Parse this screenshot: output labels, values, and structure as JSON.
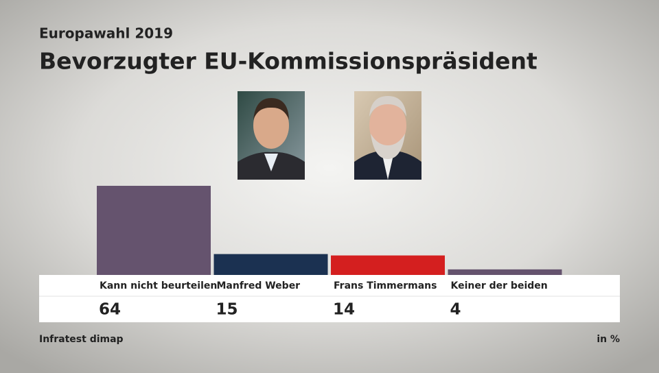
{
  "chart_data": {
    "type": "bar",
    "subtitle": "Europawahl 2019",
    "title": "Bevorzugter EU-Kommissionspräsident",
    "categories": [
      "Kann nicht beurteilen",
      "Manfred Weber",
      "Frans Timmermans",
      "Keiner der beiden"
    ],
    "values": [
      64,
      15,
      14,
      4
    ],
    "colors": [
      "#65536e",
      "#1b3151",
      "#d41f1f",
      "#65536e"
    ],
    "source": "Infratest dimap",
    "unit": "in %"
  }
}
